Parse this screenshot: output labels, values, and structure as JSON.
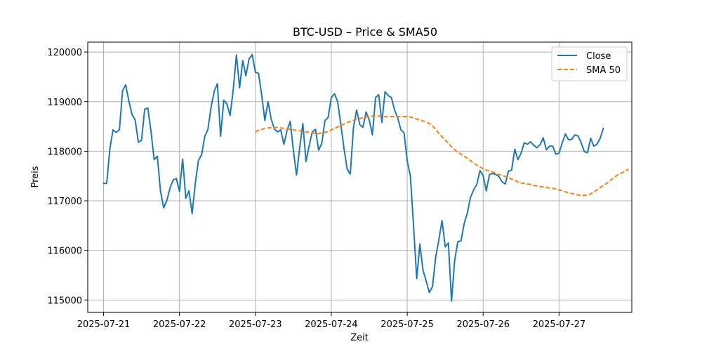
{
  "chart_data": {
    "type": "line",
    "title": "BTC-USD – Price & SMA50",
    "xlabel": "Zeit",
    "ylabel": "Preis",
    "x_ticks": [
      "2025-07-21",
      "2025-07-22",
      "2025-07-23",
      "2025-07-24",
      "2025-07-25",
      "2025-07-26",
      "2025-07-27"
    ],
    "y_ticks": [
      115000,
      116000,
      117000,
      118000,
      119000,
      120000
    ],
    "xlim": [
      "2025-07-20 19:00",
      "2025-07-27 23:00"
    ],
    "ylim": [
      114750,
      120200
    ],
    "grid": true,
    "legend_position": "top-right",
    "colors": {
      "close": "#1f77b4",
      "sma": "#ff7f0e"
    },
    "series": [
      {
        "name": "Close",
        "style": "solid",
        "start": "2025-07-21 00:00",
        "step_hours": 1,
        "values": [
          117350,
          117350,
          118050,
          118430,
          118380,
          118430,
          119220,
          119340,
          119010,
          118740,
          118630,
          118180,
          118220,
          118850,
          118870,
          118400,
          117830,
          117900,
          117200,
          116860,
          117000,
          117260,
          117420,
          117450,
          117190,
          117840,
          117050,
          117200,
          116740,
          117350,
          117820,
          117930,
          118300,
          118440,
          118890,
          119210,
          119360,
          118300,
          119030,
          118950,
          118720,
          119250,
          119940,
          119280,
          119830,
          119520,
          119860,
          119950,
          119590,
          119570,
          119130,
          118620,
          119000,
          118650,
          118450,
          118390,
          118430,
          118140,
          118420,
          118600,
          118020,
          117520,
          118070,
          118560,
          117790,
          118110,
          118390,
          118440,
          118020,
          118160,
          118620,
          118680,
          119080,
          119160,
          119000,
          118540,
          118060,
          117640,
          117540,
          118480,
          118830,
          118540,
          118480,
          118790,
          118630,
          118330,
          119080,
          119140,
          118580,
          119200,
          119120,
          119080,
          118830,
          118670,
          118430,
          118370,
          117800,
          117500,
          116500,
          115430,
          116130,
          115600,
          115380,
          115150,
          115270,
          115860,
          116210,
          116600,
          116070,
          116150,
          114980,
          115800,
          116180,
          116190,
          116540,
          116750,
          117070,
          117220,
          117330,
          117610,
          117510,
          117200,
          117530,
          117550,
          117530,
          117490,
          117380,
          117340,
          117600,
          117620,
          118040,
          117830,
          117960,
          118170,
          118140,
          118190,
          118120,
          118070,
          118130,
          118270,
          118030,
          118100,
          118100,
          117940,
          117960,
          118170,
          118350,
          118230,
          118240,
          118330,
          118310,
          118170,
          117990,
          117970,
          118260,
          118100,
          118140,
          118260,
          118460
        ]
      },
      {
        "name": "SMA 50",
        "style": "dashed",
        "start": "2025-07-23 00:00",
        "step_hours": 1,
        "values": [
          118390,
          118420,
          118440,
          118460,
          118470,
          118480,
          118480,
          118480,
          118470,
          118460,
          118450,
          118440,
          118430,
          118420,
          118410,
          118400,
          118390,
          118380,
          118370,
          118360,
          118360,
          118370,
          118380,
          118400,
          118430,
          118460,
          118490,
          118520,
          118550,
          118580,
          118600,
          118620,
          118640,
          118660,
          118680,
          118690,
          118700,
          118710,
          118710,
          118710,
          118700,
          118700,
          118700,
          118700,
          118700,
          118700,
          118700,
          118700,
          118700,
          118690,
          118670,
          118650,
          118630,
          118610,
          118590,
          118560,
          118510,
          118440,
          118360,
          118290,
          118230,
          118160,
          118090,
          118030,
          117980,
          117940,
          117900,
          117860,
          117810,
          117760,
          117720,
          117680,
          117650,
          117620,
          117600,
          117580,
          117560,
          117530,
          117510,
          117490,
          117470,
          117440,
          117410,
          117380,
          117360,
          117350,
          117340,
          117330,
          117310,
          117300,
          117290,
          117280,
          117270,
          117260,
          117250,
          117240,
          117220,
          117200,
          117180,
          117160,
          117150,
          117130,
          117120,
          117110,
          117110,
          117120,
          117140,
          117180,
          117220,
          117270,
          117310,
          117350,
          117400,
          117450,
          117500,
          117540,
          117570,
          117600,
          117640
        ]
      }
    ]
  }
}
